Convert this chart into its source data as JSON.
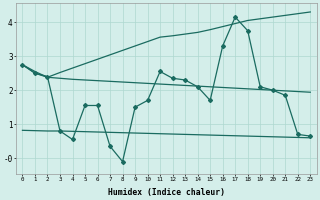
{
  "xlabel": "Humidex (Indice chaleur)",
  "background_color": "#d4eeea",
  "line_color": "#1a6b60",
  "grid_color": "#aed8d0",
  "x_data": [
    0,
    1,
    2,
    3,
    4,
    5,
    6,
    7,
    8,
    9,
    10,
    11,
    12,
    13,
    14,
    15,
    16,
    17,
    18,
    19,
    20,
    21,
    22,
    23
  ],
  "y_zigzag": [
    2.75,
    2.5,
    2.4,
    0.8,
    0.55,
    1.55,
    1.55,
    0.35,
    -0.1,
    1.5,
    1.7,
    2.55,
    2.35,
    2.3,
    2.1,
    1.7,
    3.3,
    4.15,
    3.75,
    2.1,
    2.0,
    1.85,
    0.7,
    0.65
  ],
  "y_upper": [
    2.75,
    2.55,
    2.38,
    2.52,
    2.65,
    2.78,
    2.91,
    3.04,
    3.17,
    3.3,
    3.43,
    3.56,
    3.6,
    3.65,
    3.7,
    3.78,
    3.87,
    3.96,
    4.05,
    4.1,
    4.15,
    4.2,
    4.25,
    4.3
  ],
  "y_middle": [
    2.75,
    2.5,
    2.38,
    2.35,
    2.32,
    2.3,
    2.28,
    2.26,
    2.24,
    2.22,
    2.2,
    2.18,
    2.16,
    2.14,
    2.12,
    2.1,
    2.08,
    2.06,
    2.04,
    2.02,
    2.0,
    1.98,
    1.96,
    1.94
  ],
  "y_lower": [
    0.82,
    0.81,
    0.8,
    0.8,
    0.79,
    0.78,
    0.77,
    0.76,
    0.75,
    0.74,
    0.73,
    0.72,
    0.71,
    0.7,
    0.69,
    0.68,
    0.67,
    0.66,
    0.65,
    0.64,
    0.63,
    0.62,
    0.61,
    0.6
  ],
  "ylim": [
    -0.45,
    4.55
  ],
  "xlim": [
    -0.5,
    23.5
  ],
  "yticks": [
    0,
    1,
    2,
    3,
    4
  ],
  "ytick_labels": [
    "-0",
    "1",
    "2",
    "3",
    "4"
  ],
  "xticks": [
    0,
    1,
    2,
    3,
    4,
    5,
    6,
    7,
    8,
    9,
    10,
    11,
    12,
    13,
    14,
    15,
    16,
    17,
    18,
    19,
    20,
    21,
    22,
    23
  ]
}
